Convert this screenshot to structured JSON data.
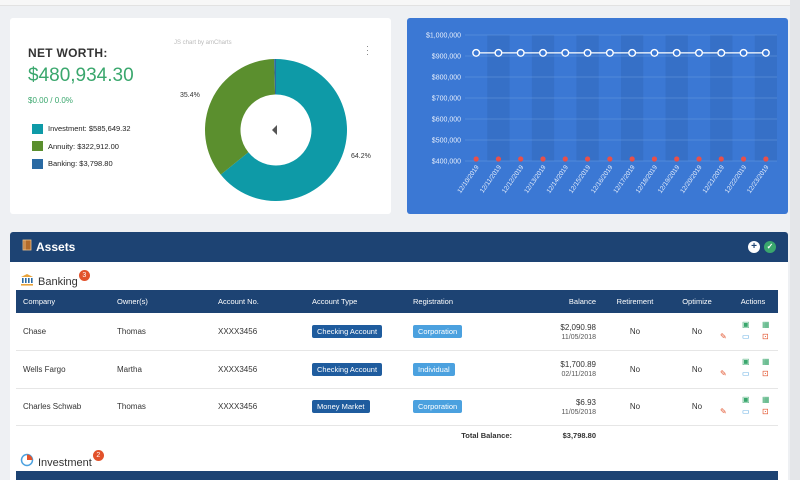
{
  "net_worth": {
    "title": "NET WORTH:",
    "value": "$480,934.30",
    "change": "$0.00 / 0.0%",
    "credit": "JS chart by amCharts",
    "legend": [
      {
        "label": "Investment:",
        "amount": "$585,649.32",
        "color": "#0e9aa7"
      },
      {
        "label": "Annuity:",
        "amount": "$322,912.00",
        "color": "#5b8f2e"
      },
      {
        "label": "Banking:",
        "amount": "$3,798.80",
        "color": "#2a6aa3"
      }
    ],
    "slice_labels": {
      "annuity": "35.4%",
      "investment": "64.2%"
    }
  },
  "chart_data": [
    {
      "type": "pie",
      "title": "",
      "categories": [
        "Investment",
        "Annuity",
        "Banking"
      ],
      "values": [
        585649.32,
        322912.0,
        3798.8
      ],
      "colors": [
        "#0e9aa7",
        "#5b8f2e",
        "#2a6aa3"
      ],
      "inner_radius_ratio": 0.5
    },
    {
      "type": "line",
      "title": "",
      "x": [
        "12/10/2019",
        "12/11/2019",
        "12/12/2019",
        "12/13/2019",
        "12/14/2019",
        "12/15/2019",
        "12/16/2019",
        "12/17/2019",
        "12/18/2019",
        "12/19/2019",
        "12/20/2019",
        "12/21/2019",
        "12/22/2019",
        "12/23/2019"
      ],
      "series": [
        {
          "values": [
            915000,
            915000,
            915000,
            915000,
            915000,
            915000,
            915000,
            915000,
            915000,
            915000,
            915000,
            915000,
            915000,
            915000
          ]
        },
        {
          "values": [
            400000,
            400000,
            400000,
            400000,
            400000,
            400000,
            400000,
            400000,
            400000,
            400000,
            400000,
            400000,
            400000,
            400000
          ]
        }
      ],
      "y_ticks": [
        "$1,000,000",
        "$900,000",
        "$800,000",
        "$700,000",
        "$600,000",
        "$500,000",
        "$400,000"
      ],
      "ylim": [
        400000,
        1000000
      ],
      "grid": true
    }
  ],
  "assets": {
    "title": "Assets",
    "banking": {
      "label": "Banking",
      "count": "3",
      "columns": [
        "Company",
        "Owner(s)",
        "Account No.",
        "Account Type",
        "Registration",
        "Balance",
        "Retirement",
        "Optimize",
        "Actions"
      ],
      "rows": [
        {
          "company": "Chase",
          "owner": "Thomas",
          "account": "XXXX3456",
          "type": "Checking Account",
          "registration": "Corporation",
          "balance": "$2,090.98",
          "date": "11/05/2018",
          "retirement": "No",
          "optimize": "No"
        },
        {
          "company": "Wells Fargo",
          "owner": "Martha",
          "account": "XXXX3456",
          "type": "Checking Account",
          "registration": "Individual",
          "balance": "$1,700.89",
          "date": "02/11/2018",
          "retirement": "No",
          "optimize": "No"
        },
        {
          "company": "Charles Schwab",
          "owner": "Thomas",
          "account": "XXXX3456",
          "type": "Money Market",
          "registration": "Corporation",
          "balance": "$6.93",
          "date": "11/05/2018",
          "retirement": "No",
          "optimize": "No"
        }
      ],
      "total_label": "Total Balance:",
      "total_value": "$3,798.80"
    },
    "investment": {
      "label": "Investment",
      "count": "2"
    }
  }
}
